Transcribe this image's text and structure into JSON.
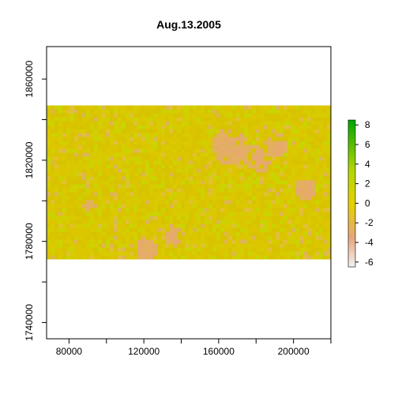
{
  "chart_data": {
    "type": "heatmap",
    "title": "Aug.13.2005",
    "xlabel": "",
    "ylabel": "",
    "xlim": [
      68000,
      220000
    ],
    "ylim": [
      1732000,
      1876000
    ],
    "raster_extent": {
      "x": [
        68000,
        220000
      ],
      "y": [
        1773000,
        1847000
      ]
    },
    "x_ticks": [
      80000,
      120000,
      160000,
      200000
    ],
    "x_minor_ticks": [
      100000,
      140000,
      180000,
      220000
    ],
    "y_ticks": [
      1740000,
      1780000,
      1820000,
      1860000
    ],
    "y_minor_ticks": [
      1760000,
      1800000,
      1840000
    ],
    "x_tick_labels": [
      "80000",
      "120000",
      "160000",
      "200000"
    ],
    "y_tick_labels": [
      "1740000",
      "1780000",
      "1820000",
      "1860000"
    ],
    "grid": false,
    "legend_placement": "right",
    "legend": {
      "ticks": [
        8,
        6,
        4,
        2,
        0,
        -2,
        -4,
        -6
      ],
      "tick_labels": [
        "8",
        "6",
        "4",
        "2",
        "0",
        "-2",
        "-4",
        "-6"
      ],
      "range": [
        -6.5,
        8.5
      ],
      "colors": {
        "low": "#f2f2f2",
        "mid_low": "#e6a57a",
        "zero": "#e6d200",
        "mid_high": "#b2d600",
        "high": "#00a600"
      }
    },
    "value_summary": {
      "dominant": 0.5,
      "patches_low": -1.8
    }
  }
}
